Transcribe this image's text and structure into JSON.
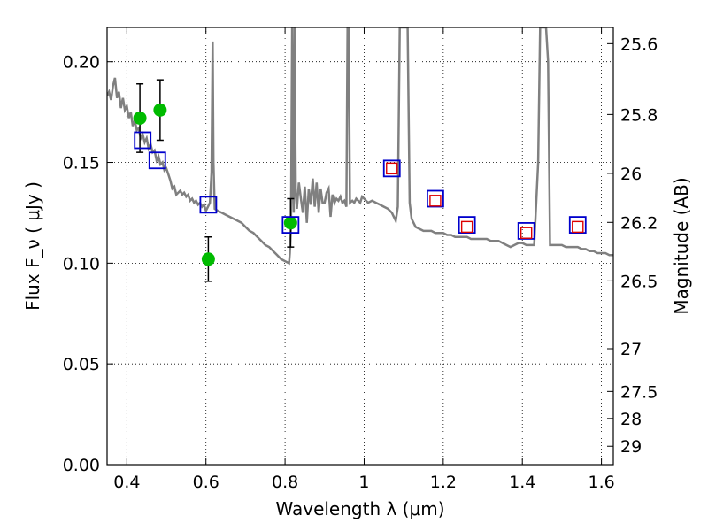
{
  "chart_data": {
    "type": "scatter",
    "xlabel": "Wavelength  λ (μm)",
    "ylabel": "Flux  F_ν  ( μJy )",
    "ylabel_right": "Magnitude (AB)",
    "xlim": [
      0.35,
      1.63
    ],
    "ylim": [
      0.0,
      0.217
    ],
    "grid": true,
    "x_ticks": [
      {
        "value": 0.4,
        "label": "0.4"
      },
      {
        "value": 0.6,
        "label": "0.6"
      },
      {
        "value": 0.8,
        "label": "0.8"
      },
      {
        "value": 1.0,
        "label": "1"
      },
      {
        "value": 1.2,
        "label": "1.2"
      },
      {
        "value": 1.4,
        "label": "1.4"
      },
      {
        "value": 1.6,
        "label": "1.6"
      }
    ],
    "y_ticks": [
      {
        "value": 0.0,
        "label": "0.00"
      },
      {
        "value": 0.05,
        "label": "0.05"
      },
      {
        "value": 0.1,
        "label": "0.10"
      },
      {
        "value": 0.15,
        "label": "0.15"
      },
      {
        "value": 0.2,
        "label": "0.20"
      }
    ],
    "y_ticks_right": [
      {
        "value": 25.6,
        "label": "25.6"
      },
      {
        "value": 25.8,
        "label": "25.8"
      },
      {
        "value": 26.0,
        "label": "26"
      },
      {
        "value": 26.2,
        "label": "26.2"
      },
      {
        "value": 26.5,
        "label": "26.5"
      },
      {
        "value": 27.0,
        "label": "27"
      },
      {
        "value": 27.5,
        "label": "27.5"
      },
      {
        "value": 28.0,
        "label": "28"
      },
      {
        "value": 29.0,
        "label": "29"
      }
    ],
    "series": [
      {
        "type": "line",
        "color": "#808080",
        "points": [
          [
            0.35,
            0.183
          ],
          [
            0.355,
            0.185
          ],
          [
            0.36,
            0.181
          ],
          [
            0.365,
            0.188
          ],
          [
            0.37,
            0.192
          ],
          [
            0.375,
            0.182
          ],
          [
            0.38,
            0.185
          ],
          [
            0.385,
            0.177
          ],
          [
            0.39,
            0.182
          ],
          [
            0.395,
            0.176
          ],
          [
            0.4,
            0.178
          ],
          [
            0.405,
            0.172
          ],
          [
            0.41,
            0.175
          ],
          [
            0.415,
            0.168
          ],
          [
            0.42,
            0.171
          ],
          [
            0.425,
            0.166
          ],
          [
            0.43,
            0.167
          ],
          [
            0.435,
            0.162
          ],
          [
            0.44,
            0.164
          ],
          [
            0.445,
            0.16
          ],
          [
            0.45,
            0.162
          ],
          [
            0.455,
            0.157
          ],
          [
            0.46,
            0.159
          ],
          [
            0.465,
            0.155
          ],
          [
            0.47,
            0.156
          ],
          [
            0.475,
            0.151
          ],
          [
            0.48,
            0.153
          ],
          [
            0.485,
            0.149
          ],
          [
            0.49,
            0.15
          ],
          [
            0.495,
            0.146
          ],
          [
            0.5,
            0.147
          ],
          [
            0.505,
            0.144
          ],
          [
            0.51,
            0.141
          ],
          [
            0.515,
            0.137
          ],
          [
            0.52,
            0.138
          ],
          [
            0.525,
            0.134
          ],
          [
            0.53,
            0.135
          ],
          [
            0.535,
            0.136
          ],
          [
            0.54,
            0.134
          ],
          [
            0.545,
            0.135
          ],
          [
            0.55,
            0.133
          ],
          [
            0.555,
            0.134
          ],
          [
            0.56,
            0.131
          ],
          [
            0.565,
            0.132
          ],
          [
            0.57,
            0.13
          ],
          [
            0.575,
            0.131
          ],
          [
            0.58,
            0.129
          ],
          [
            0.585,
            0.13
          ],
          [
            0.59,
            0.128
          ],
          [
            0.595,
            0.129
          ],
          [
            0.6,
            0.126
          ],
          [
            0.605,
            0.128
          ],
          [
            0.61,
            0.13
          ],
          [
            0.614,
            0.145
          ],
          [
            0.617,
            0.21
          ],
          [
            0.619,
            0.15
          ],
          [
            0.622,
            0.127
          ],
          [
            0.63,
            0.126
          ],
          [
            0.64,
            0.125
          ],
          [
            0.65,
            0.124
          ],
          [
            0.66,
            0.123
          ],
          [
            0.67,
            0.122
          ],
          [
            0.68,
            0.121
          ],
          [
            0.69,
            0.12
          ],
          [
            0.7,
            0.118
          ],
          [
            0.71,
            0.116
          ],
          [
            0.72,
            0.115
          ],
          [
            0.73,
            0.113
          ],
          [
            0.74,
            0.111
          ],
          [
            0.75,
            0.109
          ],
          [
            0.76,
            0.108
          ],
          [
            0.77,
            0.106
          ],
          [
            0.78,
            0.104
          ],
          [
            0.79,
            0.102
          ],
          [
            0.8,
            0.101
          ],
          [
            0.81,
            0.1
          ],
          [
            0.812,
            0.105
          ],
          [
            0.815,
            0.118
          ],
          [
            0.818,
            0.217
          ],
          [
            0.82,
            0.14
          ],
          [
            0.822,
            0.125
          ],
          [
            0.824,
            0.217
          ],
          [
            0.827,
            0.135
          ],
          [
            0.83,
            0.127
          ],
          [
            0.835,
            0.14
          ],
          [
            0.84,
            0.132
          ],
          [
            0.845,
            0.125
          ],
          [
            0.85,
            0.138
          ],
          [
            0.855,
            0.12
          ],
          [
            0.86,
            0.137
          ],
          [
            0.865,
            0.129
          ],
          [
            0.87,
            0.142
          ],
          [
            0.875,
            0.128
          ],
          [
            0.88,
            0.14
          ],
          [
            0.885,
            0.125
          ],
          [
            0.89,
            0.137
          ],
          [
            0.895,
            0.13
          ],
          [
            0.9,
            0.13
          ],
          [
            0.905,
            0.135
          ],
          [
            0.91,
            0.137
          ],
          [
            0.915,
            0.123
          ],
          [
            0.92,
            0.134
          ],
          [
            0.925,
            0.13
          ],
          [
            0.93,
            0.132
          ],
          [
            0.935,
            0.131
          ],
          [
            0.94,
            0.133
          ],
          [
            0.945,
            0.13
          ],
          [
            0.95,
            0.131
          ],
          [
            0.955,
            0.128
          ],
          [
            0.958,
            0.217
          ],
          [
            0.961,
            0.217
          ],
          [
            0.964,
            0.13
          ],
          [
            0.97,
            0.131
          ],
          [
            0.975,
            0.13
          ],
          [
            0.98,
            0.132
          ],
          [
            0.985,
            0.131
          ],
          [
            0.99,
            0.13
          ],
          [
            0.995,
            0.133
          ],
          [
            1.0,
            0.132
          ],
          [
            1.01,
            0.13
          ],
          [
            1.02,
            0.131
          ],
          [
            1.03,
            0.13
          ],
          [
            1.04,
            0.129
          ],
          [
            1.05,
            0.128
          ],
          [
            1.06,
            0.127
          ],
          [
            1.07,
            0.125
          ],
          [
            1.08,
            0.121
          ],
          [
            1.085,
            0.128
          ],
          [
            1.09,
            0.217
          ],
          [
            1.095,
            0.217
          ],
          [
            1.105,
            0.217
          ],
          [
            1.11,
            0.217
          ],
          [
            1.115,
            0.13
          ],
          [
            1.12,
            0.122
          ],
          [
            1.13,
            0.118
          ],
          [
            1.14,
            0.117
          ],
          [
            1.15,
            0.116
          ],
          [
            1.16,
            0.116
          ],
          [
            1.17,
            0.116
          ],
          [
            1.18,
            0.115
          ],
          [
            1.19,
            0.115
          ],
          [
            1.2,
            0.115
          ],
          [
            1.21,
            0.114
          ],
          [
            1.22,
            0.114
          ],
          [
            1.23,
            0.113
          ],
          [
            1.24,
            0.113
          ],
          [
            1.25,
            0.113
          ],
          [
            1.26,
            0.113
          ],
          [
            1.27,
            0.112
          ],
          [
            1.28,
            0.112
          ],
          [
            1.29,
            0.112
          ],
          [
            1.3,
            0.112
          ],
          [
            1.31,
            0.112
          ],
          [
            1.32,
            0.111
          ],
          [
            1.33,
            0.111
          ],
          [
            1.34,
            0.111
          ],
          [
            1.35,
            0.11
          ],
          [
            1.36,
            0.109
          ],
          [
            1.37,
            0.108
          ],
          [
            1.38,
            0.109
          ],
          [
            1.39,
            0.11
          ],
          [
            1.4,
            0.11
          ],
          [
            1.41,
            0.109
          ],
          [
            1.42,
            0.109
          ],
          [
            1.43,
            0.109
          ],
          [
            1.44,
            0.15
          ],
          [
            1.445,
            0.217
          ],
          [
            1.46,
            0.217
          ],
          [
            1.465,
            0.2
          ],
          [
            1.47,
            0.109
          ],
          [
            1.48,
            0.109
          ],
          [
            1.49,
            0.109
          ],
          [
            1.5,
            0.109
          ],
          [
            1.51,
            0.108
          ],
          [
            1.52,
            0.108
          ],
          [
            1.53,
            0.108
          ],
          [
            1.54,
            0.108
          ],
          [
            1.55,
            0.107
          ],
          [
            1.56,
            0.107
          ],
          [
            1.57,
            0.106
          ],
          [
            1.58,
            0.106
          ],
          [
            1.59,
            0.105
          ],
          [
            1.6,
            0.105
          ],
          [
            1.61,
            0.105
          ],
          [
            1.62,
            0.104
          ],
          [
            1.63,
            0.104
          ]
        ]
      },
      {
        "type": "scatter",
        "marker": "circle",
        "color": "#00bb00",
        "points": [
          {
            "x": 0.433,
            "y": 0.172,
            "err": 0.017
          },
          {
            "x": 0.484,
            "y": 0.176,
            "err": 0.015
          },
          {
            "x": 0.606,
            "y": 0.102,
            "err": 0.011
          },
          {
            "x": 0.814,
            "y": 0.12,
            "err": 0.012
          }
        ]
      },
      {
        "type": "scatter",
        "marker": "square",
        "color": "#0000cc",
        "points": [
          {
            "x": 0.44,
            "y": 0.161
          },
          {
            "x": 0.477,
            "y": 0.151
          },
          {
            "x": 0.606,
            "y": 0.129
          },
          {
            "x": 0.814,
            "y": 0.119
          },
          {
            "x": 1.07,
            "y": 0.147
          },
          {
            "x": 1.18,
            "y": 0.132
          },
          {
            "x": 1.26,
            "y": 0.119
          },
          {
            "x": 1.41,
            "y": 0.116
          },
          {
            "x": 1.54,
            "y": 0.119
          }
        ]
      },
      {
        "type": "scatter",
        "marker": "square",
        "color": "#dd0000",
        "points": [
          {
            "x": 1.07,
            "y": 0.147
          },
          {
            "x": 1.18,
            "y": 0.131
          },
          {
            "x": 1.26,
            "y": 0.118
          },
          {
            "x": 1.41,
            "y": 0.115
          },
          {
            "x": 1.54,
            "y": 0.118
          }
        ]
      }
    ]
  }
}
